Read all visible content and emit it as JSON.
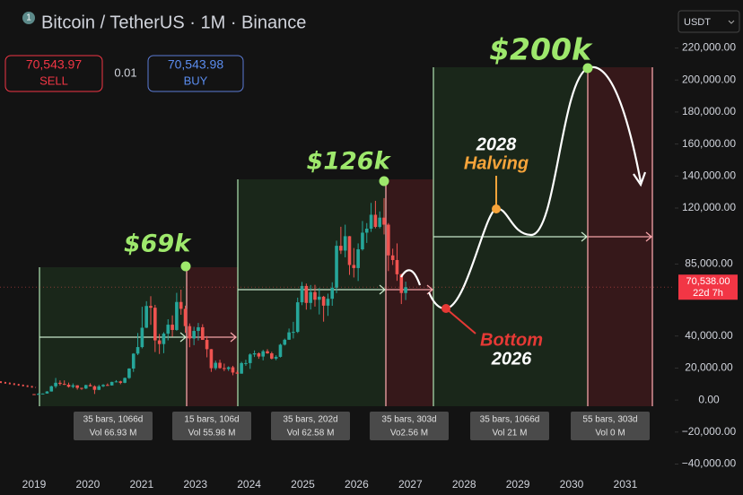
{
  "header": {
    "badge": "1",
    "title": "Bitcoin / TetherUS · 1M · Binance",
    "sell_price": "70,543.97",
    "sell": "SELL",
    "spread": "0.01",
    "buy_price": "70,543.98",
    "buy": "BUY",
    "currency": "USDT"
  },
  "chart_data": {
    "type": "candlestick",
    "up_color": "#26a69a",
    "down_color": "#ef5350",
    "ylim": [
      -47000,
      250000
    ],
    "yticks": [
      {
        "value": 220000,
        "label": "220,000.00"
      },
      {
        "value": 200000,
        "label": "200,000.00"
      },
      {
        "value": 180000,
        "label": "180,000.00"
      },
      {
        "value": 160000,
        "label": "160,000.00"
      },
      {
        "value": 140000,
        "label": "140,000.00"
      },
      {
        "value": 120000,
        "label": "120,000.00"
      },
      {
        "value": 85000,
        "label": "85,000.00"
      },
      {
        "value": 40000,
        "label": "40,000.00"
      },
      {
        "value": 20000,
        "label": "20,000.00"
      },
      {
        "value": 0,
        "label": "0.00"
      },
      {
        "value": -20000,
        "label": "−20,000.00"
      },
      {
        "value": -40000,
        "label": "−40,000.00"
      }
    ],
    "grid": false,
    "categories": [
      "2019",
      "2020",
      "2021",
      "2023",
      "2024",
      "2025",
      "2026",
      "2027",
      "2028",
      "2029",
      "2030",
      "2031"
    ],
    "ohlc": [
      [
        3700,
        3800,
        3400,
        3450
      ],
      [
        3450,
        4200,
        3400,
        3850
      ],
      [
        3850,
        4100,
        3800,
        4100
      ],
      [
        4100,
        5600,
        4100,
        5350
      ],
      [
        5350,
        9000,
        5300,
        8600
      ],
      [
        8600,
        13800,
        7500,
        10800
      ],
      [
        10800,
        12300,
        9100,
        10100
      ],
      [
        10100,
        12300,
        9400,
        9600
      ],
      [
        9600,
        10900,
        7800,
        8300
      ],
      [
        8300,
        10400,
        7400,
        9200
      ],
      [
        9200,
        9300,
        6500,
        7600
      ],
      [
        7600,
        7700,
        6400,
        7200
      ],
      [
        7200,
        9600,
        6900,
        9350
      ],
      [
        9350,
        10500,
        8500,
        8600
      ],
      [
        8600,
        9200,
        3800,
        6400
      ],
      [
        6400,
        9500,
        6200,
        8600
      ],
      [
        8600,
        10000,
        8100,
        9450
      ],
      [
        9450,
        10400,
        8900,
        9150
      ],
      [
        9150,
        11450,
        9050,
        11350
      ],
      [
        11350,
        12450,
        11000,
        11650
      ],
      [
        11650,
        12050,
        9900,
        10780
      ],
      [
        10780,
        14100,
        10500,
        13800
      ],
      [
        13800,
        19900,
        13200,
        19700
      ],
      [
        19700,
        29300,
        17600,
        29000
      ],
      [
        29000,
        41900,
        28100,
        33100
      ],
      [
        33100,
        58300,
        32300,
        45200
      ],
      [
        45200,
        61800,
        45000,
        58800
      ],
      [
        58800,
        64900,
        47000,
        57700
      ],
      [
        57700,
        59500,
        30000,
        37300
      ],
      [
        37300,
        41300,
        28800,
        35000
      ],
      [
        35000,
        42400,
        29300,
        41500
      ],
      [
        41500,
        50500,
        37300,
        47100
      ],
      [
        47100,
        52900,
        39600,
        43800
      ],
      [
        43800,
        67000,
        43300,
        61300
      ],
      [
        61300,
        69000,
        53300,
        57000
      ],
      [
        57000,
        59000,
        42000,
        46200
      ],
      [
        46200,
        47900,
        33000,
        38500
      ],
      [
        38500,
        45800,
        34300,
        43200
      ],
      [
        43200,
        48200,
        37200,
        45500
      ],
      [
        45500,
        47400,
        37600,
        37600
      ],
      [
        37600,
        40000,
        26700,
        31800
      ],
      [
        31800,
        31900,
        17600,
        19900
      ],
      [
        19900,
        24700,
        18800,
        23300
      ],
      [
        23300,
        25200,
        19600,
        20000
      ],
      [
        20000,
        22800,
        18100,
        19400
      ],
      [
        19400,
        21100,
        18200,
        20500
      ],
      [
        20500,
        21400,
        15500,
        17200
      ],
      [
        17200,
        18400,
        16300,
        16500
      ],
      [
        16500,
        23900,
        16500,
        23100
      ],
      [
        23100,
        25200,
        21400,
        23100
      ],
      [
        23100,
        29200,
        19500,
        28500
      ],
      [
        28500,
        31000,
        26900,
        29200
      ],
      [
        29200,
        29800,
        25800,
        27200
      ],
      [
        27200,
        31400,
        24800,
        30500
      ],
      [
        30500,
        31800,
        28900,
        29200
      ],
      [
        29200,
        30200,
        25400,
        25900
      ],
      [
        25900,
        28000,
        24900,
        27000
      ],
      [
        27000,
        35200,
        26600,
        34600
      ],
      [
        34600,
        38400,
        34100,
        37700
      ],
      [
        37700,
        44700,
        37600,
        42300
      ],
      [
        42300,
        48900,
        38500,
        42600
      ],
      [
        42600,
        64000,
        41900,
        61100
      ],
      [
        61100,
        73800,
        59300,
        71300
      ],
      [
        71300,
        72800,
        56500,
        60700
      ],
      [
        60700,
        71900,
        56600,
        67500
      ],
      [
        67500,
        72000,
        58400,
        62700
      ],
      [
        62700,
        70000,
        53500,
        64600
      ],
      [
        64600,
        65100,
        49000,
        59000
      ],
      [
        59000,
        66500,
        52600,
        63300
      ],
      [
        63300,
        73600,
        58900,
        70200
      ],
      [
        70200,
        99600,
        66800,
        96400
      ],
      [
        96400,
        108300,
        91300,
        93400
      ],
      [
        93400,
        109600,
        89200,
        102400
      ],
      [
        102400,
        102500,
        78200,
        84400
      ],
      [
        84400,
        95000,
        76600,
        82500
      ],
      [
        82500,
        97900,
        74400,
        94200
      ],
      [
        94200,
        111900,
        93400,
        104600
      ],
      [
        104600,
        110600,
        98200,
        107100
      ],
      [
        107100,
        123200,
        105100,
        115800
      ],
      [
        115800,
        124500,
        107300,
        108200
      ],
      [
        108200,
        117900,
        107300,
        114000
      ],
      [
        114000,
        126200,
        103500,
        109600
      ],
      [
        109600,
        110600,
        80600,
        90400
      ],
      [
        90400,
        94600,
        84400,
        87500
      ],
      [
        87500,
        97900,
        74500,
        78600
      ],
      [
        78600,
        79000,
        60000,
        66900
      ],
      [
        66900,
        74000,
        62500,
        70538
      ]
    ],
    "price_tag": {
      "price": "70,538.00",
      "countdown": "22d 7h"
    },
    "annotations": {
      "peak1": "$69k",
      "peak2": "$126k",
      "peak3": "$200k",
      "halving_year": "2028",
      "halving": "Halving",
      "bottom": "Bottom",
      "bottom_year": "2026"
    },
    "ranges": [
      {
        "bars": "35 bars, 1066d",
        "vol": "Vol 66.93 M"
      },
      {
        "bars": "15 bars, 106d",
        "vol": "Vol 55.98 M"
      },
      {
        "bars": "35 bars, 202d",
        "vol": "Vol 62.58 M"
      },
      {
        "bars": "35 bars, 303d",
        "vol": "Vo2.56 M"
      },
      {
        "bars": "35 bars, 1066d",
        "vol": "Vol 21 M"
      },
      {
        "bars": "55 bars, 303d",
        "vol": "Vol 0 M"
      }
    ]
  }
}
